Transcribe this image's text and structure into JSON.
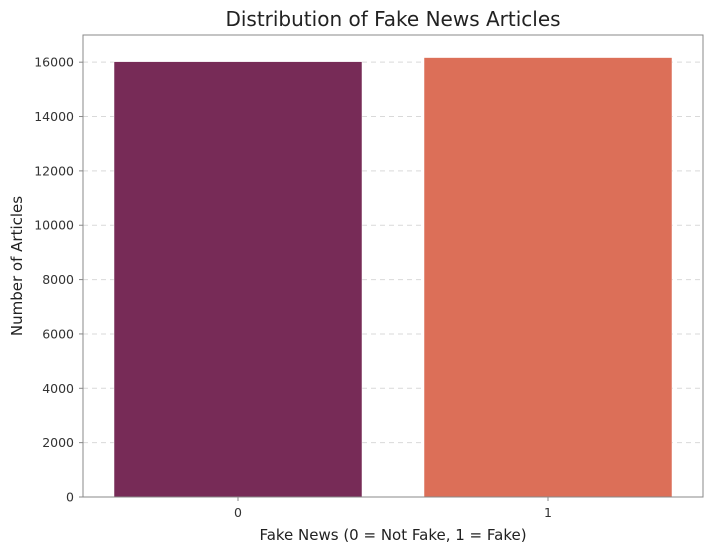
{
  "chart_data": {
    "type": "bar",
    "title": "Distribution of Fake News Articles",
    "xlabel": "Fake News (0 = Not Fake, 1 = Fake)",
    "ylabel": "Number of Articles",
    "categories": [
      "0",
      "1"
    ],
    "values": [
      16020,
      16170
    ],
    "ylim": [
      0,
      17000
    ],
    "yticks": [
      0,
      2000,
      4000,
      6000,
      8000,
      10000,
      12000,
      14000,
      16000
    ],
    "ytick_labels": [
      "0",
      "2000",
      "4000",
      "6000",
      "8000",
      "10000",
      "12000",
      "14000",
      "16000"
    ],
    "bar_colors": [
      "#772b57",
      "#dc6f58"
    ],
    "grid": "y-dashed",
    "legend": "none"
  }
}
